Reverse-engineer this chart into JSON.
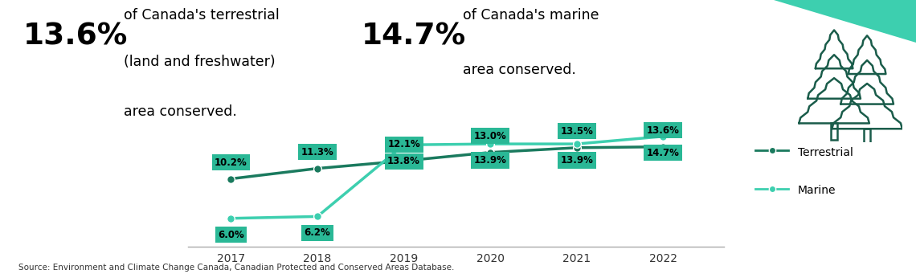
{
  "years": [
    2017,
    2018,
    2019,
    2020,
    2021,
    2022
  ],
  "terrestrial": [
    10.2,
    11.3,
    12.1,
    13.0,
    13.5,
    13.6
  ],
  "marine": [
    6.0,
    6.2,
    13.8,
    13.9,
    13.9,
    14.7
  ],
  "terrestrial_labels": [
    "10.2%",
    "11.3%",
    "12.1%",
    "13.0%",
    "13.5%",
    "13.6%"
  ],
  "marine_labels": [
    "6.0%",
    "6.2%",
    "13.8%",
    "13.9%",
    "13.9%",
    "14.7%"
  ],
  "terrestrial_color": "#1a7a5e",
  "marine_color": "#3dcfaf",
  "label_bg_color": "#2ab896",
  "headline_pct_terrestrial": "13.6%",
  "headline_text_terrestrial_line1": "of Canada's terrestrial",
  "headline_text_terrestrial_line2": "(land and freshwater)",
  "headline_text_terrestrial_line3": "area conserved.",
  "headline_pct_marine": "14.7%",
  "headline_text_marine_line1": "of Canada's marine",
  "headline_text_marine_line2": "area conserved.",
  "source_text": "Source: Environment and Climate Change Canada, Canadian Protected and Conserved Areas Database.",
  "legend_terrestrial": "Terrestrial",
  "legend_marine": "Marine",
  "bg_color": "#ffffff",
  "corner_color": "#3dcfaf",
  "corner_dark": "#1a5c4a",
  "ylim_min": 3,
  "ylim_max": 19
}
